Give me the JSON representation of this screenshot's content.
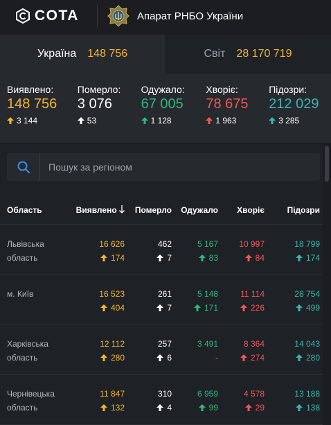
{
  "header": {
    "brand": "COTA",
    "org_name": "Апарат РНБО України"
  },
  "tabs": [
    {
      "label": "Україна",
      "value": "148 756"
    },
    {
      "label": "Світ",
      "value": "28 170 719"
    }
  ],
  "summary": [
    {
      "label": "Виявлено:",
      "value": "148 756",
      "delta": "3 144",
      "color": "#f5b731"
    },
    {
      "label": "Померло:",
      "value": "3 076",
      "delta": "53",
      "color": "#ffffff"
    },
    {
      "label": "Одужало:",
      "value": "67 005",
      "delta": "1 128",
      "color": "#2fb87a"
    },
    {
      "label": "Хворіє:",
      "value": "78 675",
      "delta": "1 963",
      "color": "#f25656"
    },
    {
      "label": "Підозри:",
      "value": "212 029",
      "delta": "3 285",
      "color": "#3ab6b1"
    }
  ],
  "search": {
    "placeholder": "Пошук за регіоном"
  },
  "table": {
    "headers": {
      "region": "Область",
      "found": "Виявлено",
      "died": "Померло",
      "recovered": "Одужало",
      "sick": "Хворіє",
      "suspected": "Підозри"
    },
    "rows": [
      {
        "region": "Львівська область",
        "found": "16 626",
        "found_d": "174",
        "died": "462",
        "died_d": "7",
        "recovered": "5 167",
        "recovered_d": "83",
        "sick": "10 997",
        "sick_d": "84",
        "suspected": "18 799",
        "suspected_d": "174"
      },
      {
        "region": "м. Київ",
        "found": "16 523",
        "found_d": "404",
        "died": "261",
        "died_d": "7",
        "recovered": "5 148",
        "recovered_d": "171",
        "sick": "11 114",
        "sick_d": "226",
        "suspected": "28 754",
        "suspected_d": "499"
      },
      {
        "region": "Харківська область",
        "found": "12 112",
        "found_d": "280",
        "died": "257",
        "died_d": "6",
        "recovered": "3 491",
        "recovered_d": "-",
        "sick": "8 364",
        "sick_d": "274",
        "suspected": "14 043",
        "suspected_d": "280"
      },
      {
        "region": "Чернівецька область",
        "found": "11 847",
        "found_d": "132",
        "died": "310",
        "died_d": "4",
        "recovered": "6 959",
        "recovered_d": "99",
        "sick": "4 578",
        "sick_d": "29",
        "suspected": "13 188",
        "suspected_d": "138"
      }
    ]
  }
}
